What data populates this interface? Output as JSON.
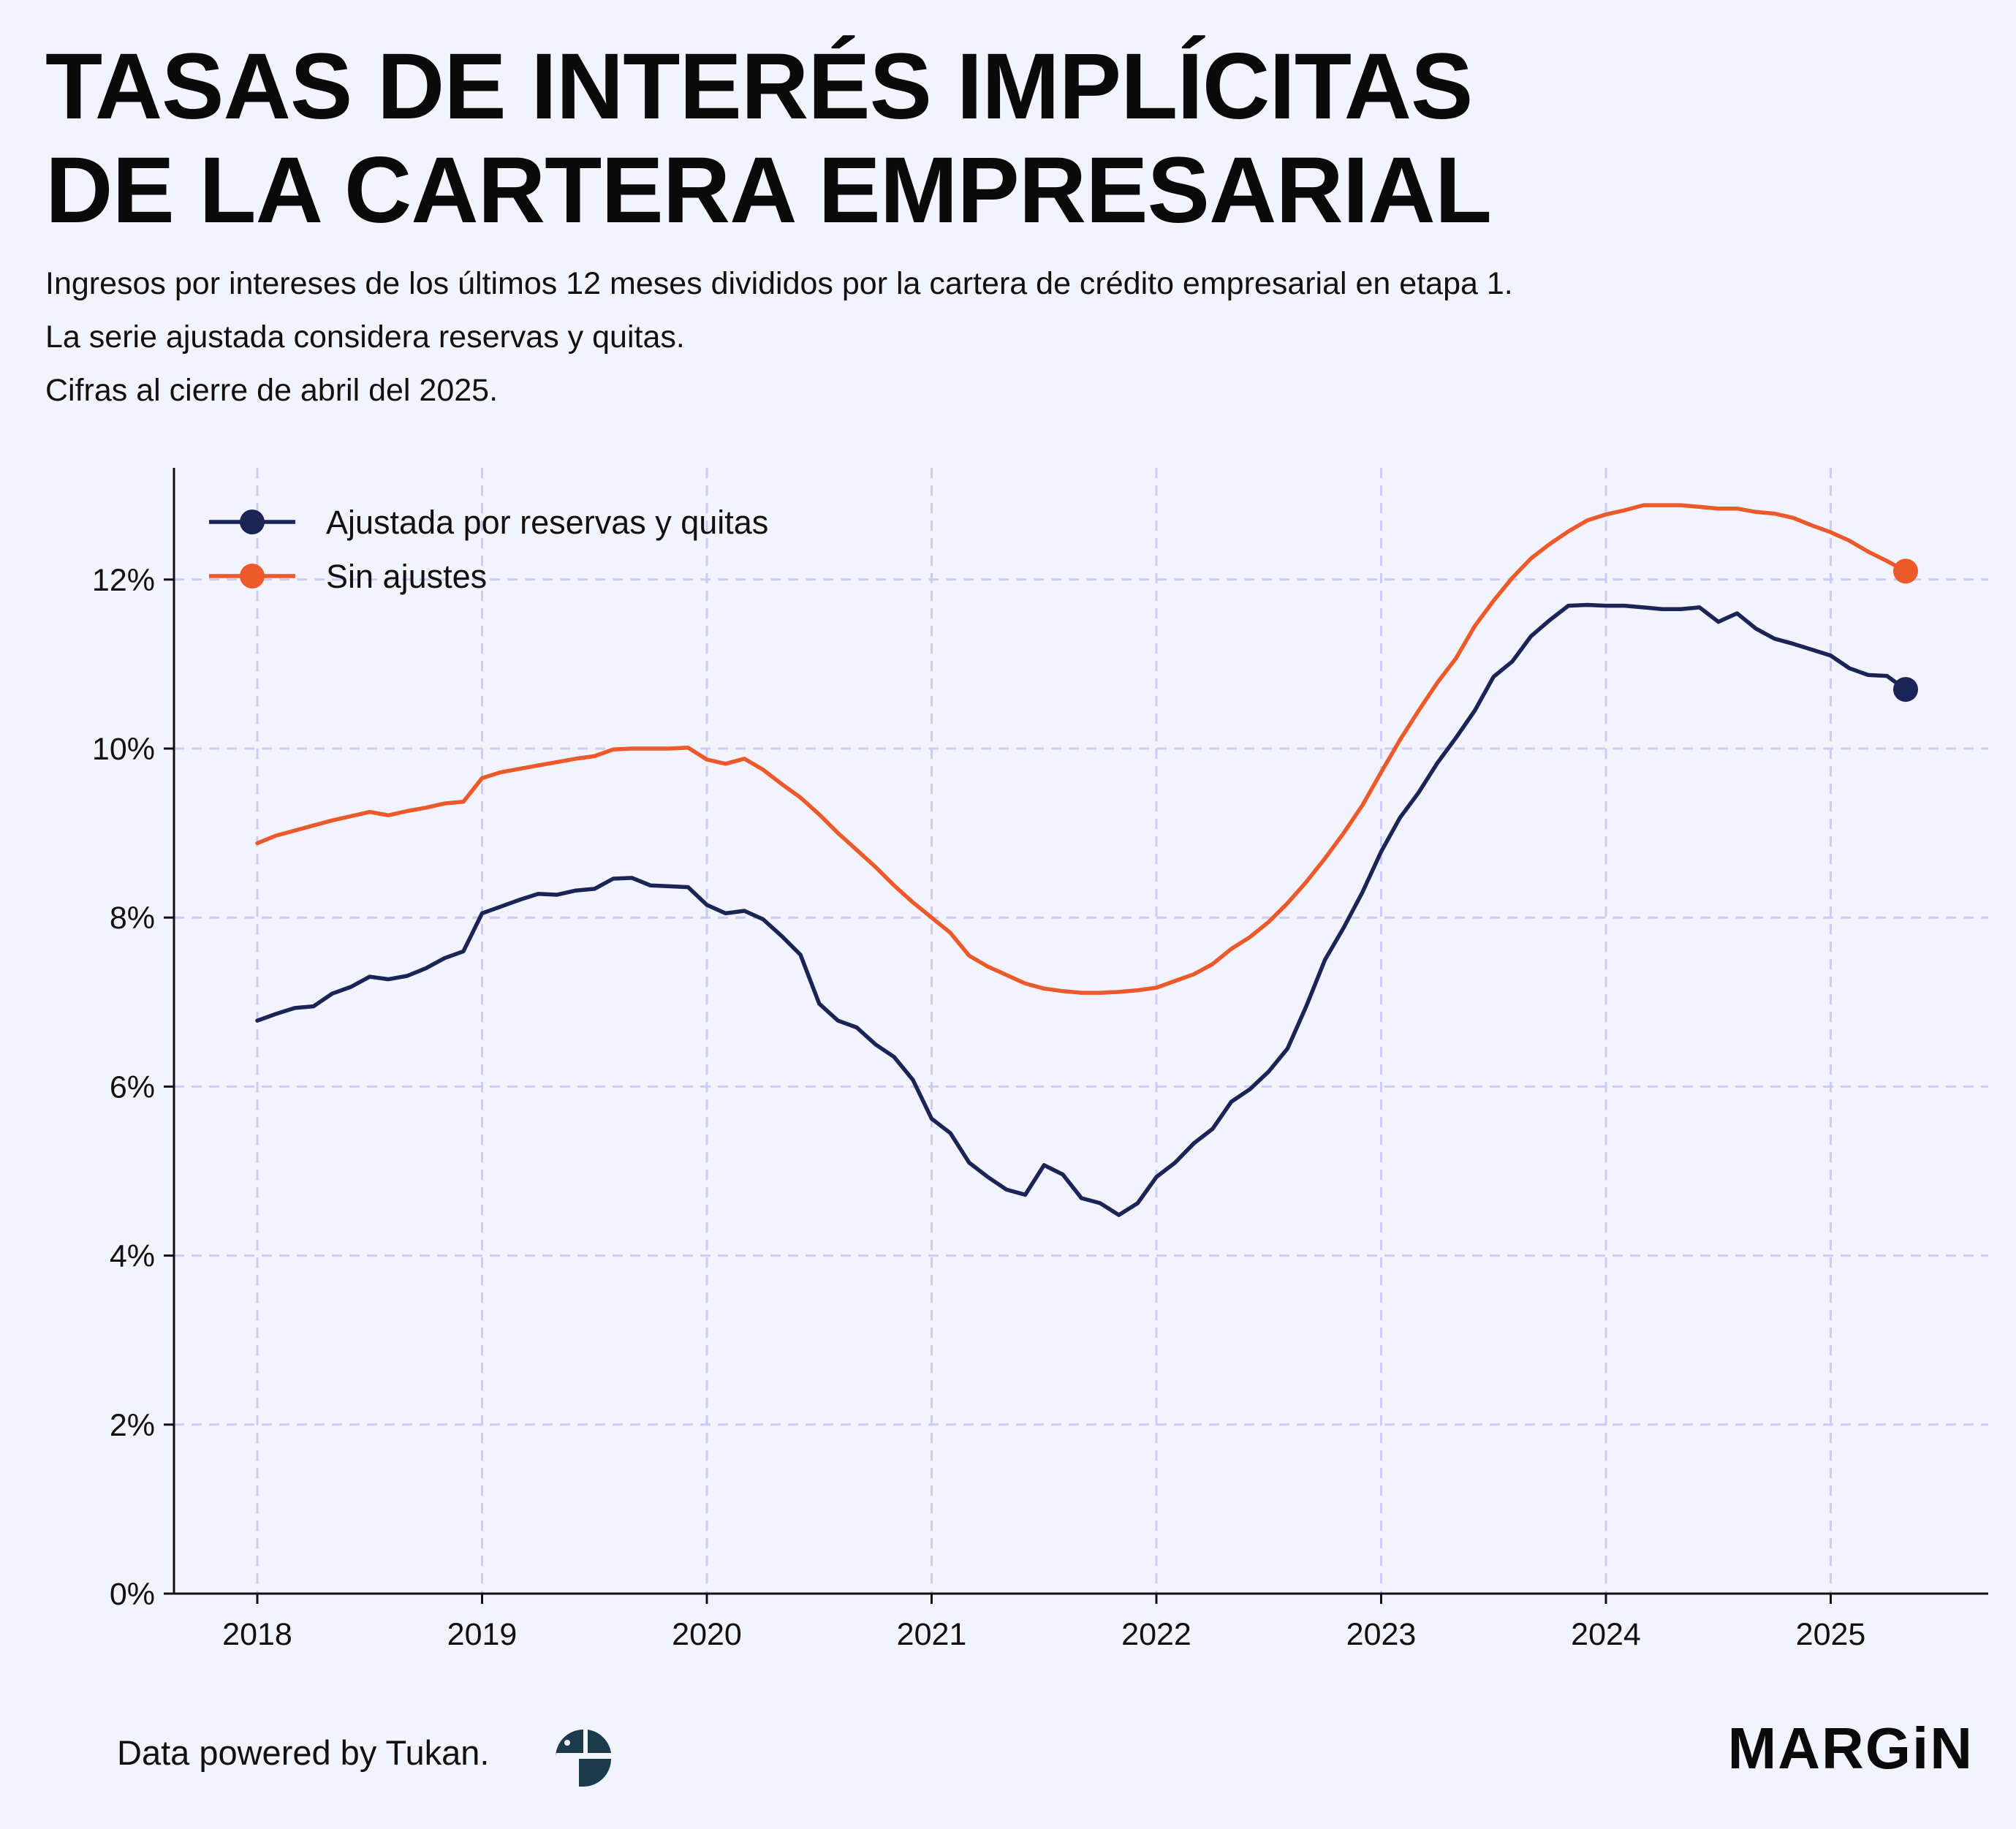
{
  "title_lines": [
    "TASAS DE INTERÉS IMPLÍCITAS",
    "DE LA CARTERA EMPRESARIAL"
  ],
  "subtitle_lines": [
    "Ingresos por intereses de los últimos 12 meses divididos por la cartera de crédito empresarial en etapa 1.",
    "La serie ajustada considera reservas y quitas.",
    "Cifras al cierre de abril del 2025."
  ],
  "footer": {
    "credit": "Data powered by Tukan.",
    "brand": "MARGiN"
  },
  "chart_data": {
    "type": "line",
    "title": "TASAS DE INTERÉS IMPLÍCITAS DE LA CARTERA EMPRESARIAL",
    "xlabel": "",
    "ylabel": "",
    "xlim": [
      2017.63,
      2025.9
    ],
    "ylim": [
      0,
      13.3
    ],
    "grid": true,
    "legend_position": "top-left",
    "x_ticks": [
      2018,
      2019,
      2020,
      2021,
      2022,
      2023,
      2024,
      2025
    ],
    "x_tick_labels": [
      "2018",
      "2019",
      "2020",
      "2021",
      "2022",
      "2023",
      "2024",
      "2025"
    ],
    "y_ticks": [
      0,
      2,
      4,
      6,
      8,
      10,
      12
    ],
    "y_tick_labels": [
      "0%",
      "2%",
      "4%",
      "6%",
      "8%",
      "10%",
      "12%"
    ],
    "start": "2018-01",
    "frequency": "monthly",
    "series": [
      {
        "name": "Ajustada por reservas y quitas",
        "color": "#1b2457",
        "values": [
          6.78,
          6.86,
          6.93,
          6.95,
          7.1,
          7.18,
          7.3,
          7.27,
          7.31,
          7.4,
          7.52,
          7.6,
          8.05,
          8.13,
          8.21,
          8.28,
          8.27,
          8.32,
          8.34,
          8.46,
          8.47,
          8.38,
          8.37,
          8.36,
          8.15,
          8.05,
          8.08,
          7.98,
          7.78,
          7.56,
          6.98,
          6.78,
          6.7,
          6.5,
          6.35,
          6.08,
          5.62,
          5.45,
          5.1,
          4.93,
          4.78,
          4.72,
          5.07,
          4.96,
          4.68,
          4.62,
          4.48,
          4.62,
          4.93,
          5.1,
          5.33,
          5.5,
          5.82,
          5.97,
          6.18,
          6.45,
          6.95,
          7.5,
          7.88,
          8.3,
          8.78,
          9.18,
          9.48,
          9.83,
          10.13,
          10.45,
          10.85,
          11.03,
          11.33,
          11.52,
          11.69,
          11.7,
          11.69,
          11.69,
          11.67,
          11.65,
          11.65,
          11.67,
          11.5,
          11.6,
          11.42,
          11.3,
          11.24,
          11.17,
          11.1,
          10.95,
          10.87,
          10.86,
          10.7
        ]
      },
      {
        "name": "Sin ajustes",
        "color": "#ec5a2c",
        "values": [
          8.88,
          8.97,
          9.03,
          9.09,
          9.15,
          9.2,
          9.25,
          9.21,
          9.26,
          9.3,
          9.35,
          9.37,
          9.65,
          9.72,
          9.76,
          9.8,
          9.84,
          9.88,
          9.91,
          9.99,
          10.0,
          10.0,
          10.0,
          10.01,
          9.87,
          9.82,
          9.88,
          9.75,
          9.58,
          9.42,
          9.22,
          9.0,
          8.8,
          8.6,
          8.38,
          8.18,
          8.0,
          7.82,
          7.55,
          7.42,
          7.32,
          7.22,
          7.16,
          7.13,
          7.11,
          7.11,
          7.12,
          7.14,
          7.17,
          7.25,
          7.33,
          7.45,
          7.63,
          7.77,
          7.95,
          8.17,
          8.42,
          8.7,
          9.0,
          9.33,
          9.72,
          10.1,
          10.45,
          10.78,
          11.07,
          11.45,
          11.75,
          12.02,
          12.25,
          12.42,
          12.57,
          12.7,
          12.77,
          12.82,
          12.88,
          12.88,
          12.88,
          12.86,
          12.84,
          12.84,
          12.8,
          12.78,
          12.73,
          12.64,
          12.56,
          12.46,
          12.33,
          12.22,
          12.1
        ]
      }
    ]
  }
}
